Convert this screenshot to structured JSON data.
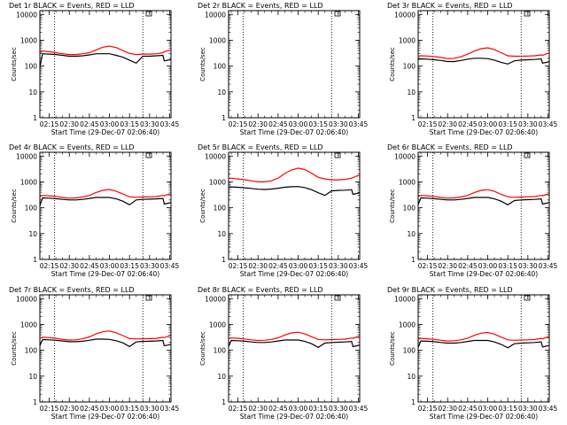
{
  "colors": {
    "events": "#000000",
    "lld": "#ff0000",
    "background": "#ffffff",
    "axis": "#000000"
  },
  "common": {
    "xlabel": "Start Time (29-Dec-07 02:06:40)",
    "ylabel": "Counts/sec",
    "x_ticks": [
      "02:15",
      "02:30",
      "02:45",
      "03:00",
      "03:15",
      "03:30",
      "03:45"
    ],
    "x_tick_values": [
      15,
      30,
      45,
      60,
      75,
      90,
      105
    ],
    "y_ticks": [
      "1",
      "10",
      "100",
      "1000",
      "10000"
    ],
    "y_tick_values": [
      1,
      10,
      100,
      1000,
      10000
    ],
    "xlim": [
      8,
      106
    ],
    "ylim": [
      1,
      14000
    ],
    "yscale": "log"
  },
  "chart_data": [
    {
      "type": "line",
      "title": "Det 1r  BLACK = Events, RED = LLD",
      "xlabel": "Start Time (29-Dec-07 02:06:40)",
      "ylabel": "Counts/sec",
      "xlim": [
        8,
        106
      ],
      "ylim": [
        1,
        14000
      ],
      "yscale": "log",
      "vlines": [
        19,
        85
      ],
      "x": [
        8,
        10,
        15,
        20,
        25,
        30,
        35,
        40,
        45,
        50,
        55,
        60,
        65,
        70,
        75,
        80,
        85,
        90,
        95,
        100,
        101,
        104,
        106
      ],
      "series": [
        {
          "name": "Events",
          "color": "#000000",
          "values": [
            90,
            300,
            290,
            280,
            260,
            240,
            240,
            250,
            270,
            300,
            300,
            300,
            260,
            220,
            170,
            130,
            240,
            240,
            250,
            260,
            160,
            170,
            180
          ]
        },
        {
          "name": "LLD",
          "color": "#ff0000",
          "values": [
            320,
            380,
            360,
            330,
            300,
            280,
            280,
            300,
            330,
            420,
            540,
            590,
            520,
            400,
            310,
            280,
            290,
            290,
            300,
            330,
            360,
            400,
            410
          ]
        }
      ]
    },
    {
      "type": "line",
      "title": "Det 2r  BLACK = Events, RED = LLD",
      "xlabel": "Start Time (29-Dec-07 02:06:40)",
      "ylabel": "Counts/sec",
      "xlim": [
        8,
        106
      ],
      "ylim": [
        1,
        14000
      ],
      "yscale": "log",
      "vlines": [
        19,
        85
      ],
      "x": [],
      "series": []
    },
    {
      "type": "line",
      "title": "Det 3r  BLACK = Events, RED = LLD",
      "xlabel": "Start Time (29-Dec-07 02:06:40)",
      "ylabel": "Counts/sec",
      "xlim": [
        8,
        106
      ],
      "ylim": [
        1,
        14000
      ],
      "yscale": "log",
      "vlines": [
        19,
        85
      ],
      "x": [
        8,
        10,
        15,
        20,
        25,
        30,
        35,
        40,
        45,
        50,
        55,
        60,
        65,
        70,
        75,
        80,
        85,
        90,
        95,
        100,
        101,
        104,
        106
      ],
      "series": [
        {
          "name": "Events",
          "color": "#000000",
          "values": [
            180,
            190,
            185,
            175,
            165,
            150,
            150,
            165,
            185,
            200,
            200,
            195,
            170,
            140,
            120,
            160,
            170,
            175,
            180,
            190,
            130,
            140,
            150
          ]
        },
        {
          "name": "LLD",
          "color": "#ff0000",
          "values": [
            240,
            250,
            245,
            235,
            215,
            195,
            200,
            230,
            290,
            380,
            470,
            510,
            440,
            330,
            250,
            240,
            240,
            245,
            250,
            270,
            260,
            300,
            320
          ]
        }
      ]
    },
    {
      "type": "line",
      "title": "Det 4r  BLACK = Events, RED = LLD",
      "xlabel": "Start Time (29-Dec-07 02:06:40)",
      "ylabel": "Counts/sec",
      "xlim": [
        8,
        106
      ],
      "ylim": [
        1,
        14000
      ],
      "yscale": "log",
      "vlines": [
        19,
        85
      ],
      "x": [
        8,
        10,
        15,
        20,
        25,
        30,
        35,
        40,
        45,
        50,
        55,
        60,
        65,
        70,
        75,
        80,
        85,
        90,
        95,
        100,
        101,
        104,
        106
      ],
      "series": [
        {
          "name": "Events",
          "color": "#000000",
          "values": [
            120,
            240,
            235,
            225,
            210,
            200,
            200,
            210,
            230,
            250,
            250,
            250,
            220,
            180,
            130,
            200,
            210,
            215,
            220,
            230,
            140,
            150,
            160
          ]
        },
        {
          "name": "LLD",
          "color": "#ff0000",
          "values": [
            270,
            300,
            290,
            275,
            250,
            235,
            240,
            260,
            300,
            390,
            470,
            510,
            440,
            340,
            265,
            255,
            260,
            265,
            270,
            300,
            290,
            330,
            350
          ]
        }
      ]
    },
    {
      "type": "line",
      "title": "Det 5r  BLACK = Events, RED = LLD",
      "xlabel": "Start Time (29-Dec-07 02:06:40)",
      "ylabel": "Counts/sec",
      "xlim": [
        8,
        106
      ],
      "ylim": [
        1,
        14000
      ],
      "yscale": "log",
      "vlines": [
        19,
        85
      ],
      "x": [
        8,
        10,
        15,
        20,
        25,
        30,
        35,
        40,
        45,
        50,
        55,
        60,
        65,
        70,
        75,
        80,
        85,
        90,
        95,
        100,
        101,
        104,
        106
      ],
      "series": [
        {
          "name": "Events",
          "color": "#000000",
          "values": [
            600,
            640,
            620,
            590,
            560,
            520,
            510,
            530,
            570,
            620,
            650,
            660,
            600,
            500,
            380,
            300,
            450,
            470,
            480,
            500,
            330,
            360,
            380
          ]
        },
        {
          "name": "LLD",
          "color": "#ff0000",
          "values": [
            1350,
            1400,
            1300,
            1200,
            1100,
            1000,
            1000,
            1100,
            1400,
            2100,
            2900,
            3400,
            3000,
            2200,
            1500,
            1300,
            1200,
            1200,
            1250,
            1400,
            1450,
            1700,
            1750
          ]
        }
      ]
    },
    {
      "type": "line",
      "title": "Det 6r  BLACK = Events, RED = LLD",
      "xlabel": "Start Time (29-Dec-07 02:06:40)",
      "ylabel": "Counts/sec",
      "xlim": [
        8,
        106
      ],
      "ylim": [
        1,
        14000
      ],
      "yscale": "log",
      "vlines": [
        19,
        85
      ],
      "x": [
        8,
        10,
        15,
        20,
        25,
        30,
        35,
        40,
        45,
        50,
        55,
        60,
        65,
        70,
        75,
        80,
        85,
        90,
        95,
        100,
        101,
        104,
        106
      ],
      "series": [
        {
          "name": "Events",
          "color": "#000000",
          "values": [
            130,
            240,
            235,
            225,
            210,
            200,
            200,
            210,
            230,
            250,
            250,
            250,
            220,
            180,
            130,
            190,
            200,
            205,
            210,
            220,
            140,
            150,
            160
          ]
        },
        {
          "name": "LLD",
          "color": "#ff0000",
          "values": [
            270,
            300,
            290,
            275,
            250,
            235,
            240,
            260,
            300,
            390,
            470,
            500,
            430,
            330,
            265,
            255,
            260,
            265,
            270,
            300,
            290,
            330,
            350
          ]
        }
      ]
    },
    {
      "type": "line",
      "title": "Det 7r  BLACK = Events, RED = LLD",
      "xlabel": "Start Time (29-Dec-07 02:06:40)",
      "ylabel": "Counts/sec",
      "xlim": [
        8,
        106
      ],
      "ylim": [
        1,
        14000
      ],
      "yscale": "log",
      "vlines": [
        19,
        85
      ],
      "x": [
        8,
        10,
        15,
        20,
        25,
        30,
        35,
        40,
        45,
        50,
        55,
        60,
        65,
        70,
        75,
        80,
        85,
        90,
        95,
        100,
        101,
        104,
        106
      ],
      "series": [
        {
          "name": "Events",
          "color": "#000000",
          "values": [
            150,
            260,
            255,
            245,
            230,
            215,
            215,
            225,
            245,
            270,
            270,
            265,
            235,
            195,
            140,
            210,
            220,
            225,
            230,
            240,
            150,
            160,
            170
          ]
        },
        {
          "name": "LLD",
          "color": "#ff0000",
          "values": [
            290,
            320,
            310,
            290,
            265,
            250,
            255,
            280,
            330,
            430,
            520,
            560,
            480,
            370,
            285,
            275,
            280,
            285,
            290,
            320,
            310,
            350,
            370
          ]
        }
      ]
    },
    {
      "type": "line",
      "title": "Det 8r  BLACK = Events, RED = LLD",
      "xlabel": "Start Time (29-Dec-07 02:06:40)",
      "ylabel": "Counts/sec",
      "xlim": [
        8,
        106
      ],
      "ylim": [
        1,
        14000
      ],
      "yscale": "log",
      "vlines": [
        19,
        85
      ],
      "x": [
        8,
        10,
        15,
        20,
        25,
        30,
        35,
        40,
        45,
        50,
        55,
        60,
        65,
        70,
        75,
        80,
        85,
        90,
        95,
        100,
        101,
        104,
        106
      ],
      "series": [
        {
          "name": "Events",
          "color": "#000000",
          "values": [
            140,
            240,
            235,
            225,
            210,
            200,
            200,
            210,
            230,
            250,
            250,
            250,
            220,
            180,
            130,
            190,
            200,
            205,
            210,
            220,
            140,
            150,
            160
          ]
        },
        {
          "name": "LLD",
          "color": "#ff0000",
          "values": [
            280,
            300,
            290,
            275,
            255,
            240,
            245,
            265,
            305,
            390,
            470,
            500,
            430,
            335,
            265,
            255,
            260,
            265,
            270,
            300,
            290,
            330,
            350
          ]
        }
      ]
    },
    {
      "type": "line",
      "title": "Det 9r  BLACK = Events, RED = LLD",
      "xlabel": "Start Time (29-Dec-07 02:06:40)",
      "ylabel": "Counts/sec",
      "xlim": [
        8,
        106
      ],
      "ylim": [
        1,
        14000
      ],
      "yscale": "log",
      "vlines": [
        19,
        85
      ],
      "x": [
        8,
        10,
        15,
        20,
        25,
        30,
        35,
        40,
        45,
        50,
        55,
        60,
        65,
        70,
        75,
        80,
        85,
        90,
        95,
        100,
        101,
        104,
        106
      ],
      "series": [
        {
          "name": "Events",
          "color": "#000000",
          "values": [
            130,
            230,
            225,
            215,
            200,
            190,
            190,
            200,
            220,
            240,
            240,
            240,
            210,
            170,
            125,
            180,
            190,
            195,
            200,
            210,
            135,
            145,
            155
          ]
        },
        {
          "name": "LLD",
          "color": "#ff0000",
          "values": [
            270,
            290,
            280,
            265,
            245,
            230,
            235,
            255,
            295,
            380,
            460,
            490,
            420,
            325,
            255,
            245,
            250,
            255,
            260,
            290,
            280,
            320,
            340
          ]
        }
      ]
    }
  ]
}
